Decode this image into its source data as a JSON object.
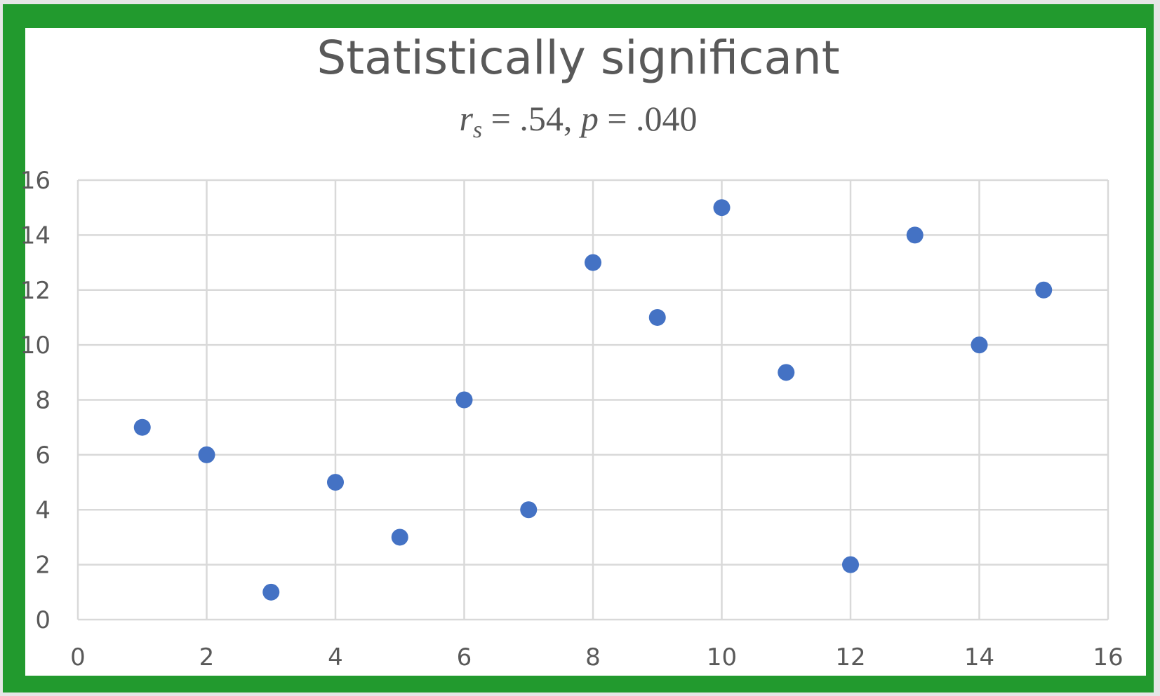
{
  "chart_data": {
    "type": "scatter",
    "title": "Statistically significant",
    "subtitle": {
      "r_symbol": "r",
      "r_subscript": "s",
      "r_value": " = .54, ",
      "p_symbol": "p",
      "p_value": " = .040"
    },
    "xlim": [
      0,
      16
    ],
    "ylim": [
      0,
      16
    ],
    "xticks": [
      0,
      2,
      4,
      6,
      8,
      10,
      12,
      14,
      16
    ],
    "yticks": [
      0,
      2,
      4,
      6,
      8,
      10,
      12,
      14,
      16
    ],
    "grid": true,
    "marker_color": "#4472c4",
    "points": [
      {
        "x": 1,
        "y": 7
      },
      {
        "x": 2,
        "y": 6
      },
      {
        "x": 3,
        "y": 1
      },
      {
        "x": 4,
        "y": 5
      },
      {
        "x": 5,
        "y": 3
      },
      {
        "x": 6,
        "y": 8
      },
      {
        "x": 7,
        "y": 4
      },
      {
        "x": 8,
        "y": 13
      },
      {
        "x": 9,
        "y": 11
      },
      {
        "x": 10,
        "y": 15
      },
      {
        "x": 11,
        "y": 9
      },
      {
        "x": 12,
        "y": 2
      },
      {
        "x": 13,
        "y": 14
      },
      {
        "x": 14,
        "y": 10
      },
      {
        "x": 15,
        "y": 12
      }
    ]
  },
  "colors": {
    "frame": "#229a2e",
    "grid": "#d9d9d9",
    "text": "#595959"
  }
}
